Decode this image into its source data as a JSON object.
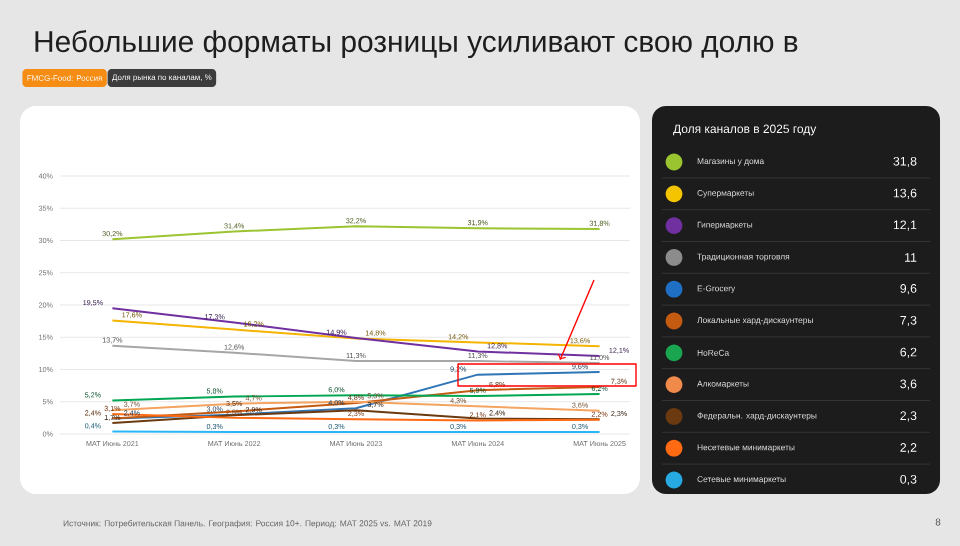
{
  "chart_data": [
    {
      "type": "line",
      "title": "Небольшие форматы розницы усиливают свою долю в",
      "subtitle": "FMCG-Food: Россия",
      "categories": [
        "MAT Июнь 2021",
        "MAT Июнь 2022",
        "MAT Июнь 2023",
        "MAT Июнь 2024",
        "MAT Июнь 2025"
      ],
      "ylim": [
        0,
        40
      ],
      "yticks": [
        {
          "value": 0,
          "label": "0%"
        },
        {
          "value": 5,
          "label": "5%"
        },
        {
          "value": 10,
          "label": "10%"
        },
        {
          "value": 15,
          "label": "15%"
        },
        {
          "value": 20,
          "label": "20%"
        },
        {
          "value": 25,
          "label": "25%"
        },
        {
          "value": 30,
          "label": "30%"
        },
        {
          "value": 35,
          "label": "35%"
        },
        {
          "value": 40,
          "label": "40%"
        }
      ],
      "grid": "y",
      "marker": "none",
      "line_style": "solid",
      "series": [
        {
          "color": "#9bc431",
          "values": [
            30.2,
            31.4,
            32.2,
            31.9,
            31.8
          ],
          "value_labels": [
            "30,2%",
            "31,4%",
            "32,2%",
            "31,9%",
            "31,8%"
          ]
        },
        {
          "color": "#f5b400",
          "values": [
            17.6,
            16.2,
            14.8,
            14.2,
            13.6
          ],
          "value_labels": [
            "17,6%",
            "16,2%",
            "14,8%",
            "14,2%",
            "13,6%"
          ]
        },
        {
          "color": "#7030a0",
          "values": [
            19.5,
            17.3,
            14.9,
            12.8,
            12.1
          ],
          "value_labels": [
            "19,5%",
            "17,3%",
            "14,9%",
            "12,8%",
            "12,1%"
          ]
        },
        {
          "color": "#a6a6a6",
          "values": [
            13.7,
            12.6,
            11.3,
            11.3,
            11.0
          ],
          "value_labels": [
            "13,7%",
            "12,6%",
            "11,3%",
            "11,3%",
            "11,0%"
          ]
        },
        {
          "color": "#2e75b6",
          "values": [
            2.4,
            3.0,
            4.0,
            9.2,
            9.6
          ],
          "value_labels": [
            "2,4%",
            "3,0%",
            "4,0%",
            "9,2%",
            "9,6%"
          ]
        },
        {
          "color": "#c55a11",
          "values": [
            2.4,
            3.5,
            4.8,
            6.8,
            7.3
          ],
          "value_labels": [
            "2,4%",
            "3,5%",
            "4,8%",
            "6,8%",
            "7,3%"
          ]
        },
        {
          "color": "#00a651",
          "values": [
            5.2,
            5.8,
            6.0,
            5.9,
            6.2
          ],
          "value_labels": [
            "5,2%",
            "5,8%",
            "6,0%",
            "5,9%",
            "6,2%"
          ]
        },
        {
          "color": "#f4a460",
          "values": [
            3.7,
            4.7,
            5.0,
            4.3,
            3.6
          ],
          "value_labels": [
            "3,7%",
            "4,7%",
            "5,0%",
            "4,3%",
            "3,6%"
          ]
        },
        {
          "color": "#6b3a10",
          "values": [
            1.7,
            2.9,
            3.7,
            2.4,
            2.3
          ],
          "value_labels": [
            "1,7%",
            "2,9%",
            "3,7%",
            "2,4%",
            "2,3%"
          ]
        },
        {
          "color": "#ff6a13",
          "values": [
            3.1,
            2.5,
            2.3,
            2.1,
            2.2
          ],
          "value_labels": [
            "3,1%",
            "2,5%",
            "2,3%",
            "2,1%",
            "2,2%"
          ]
        },
        {
          "color": "#29b6f6",
          "values": [
            0.4,
            0.3,
            0.3,
            0.3,
            0.3
          ],
          "value_labels": [
            "0,4%",
            "0,3%",
            "0,3%",
            "0,3%",
            "0,3%"
          ]
        }
      ],
      "annotations": [
        "Доля рынка по каналам, %",
        "Источник: Потребительская Панель. География: Россия 10+. Период: MAT 2025 vs. MAT 2019",
        "8"
      ]
    },
    {
      "type": "other",
      "title": "Доля каналов в 2025 году",
      "categories": [
        "Магазины у дома",
        "Супермаркеты",
        "Гипермаркеты",
        "Традиционная торговля",
        "E-Grocery",
        "Локальные хард-дискаунтеры",
        "HoReCa",
        "Алкомаркеты",
        "Федеральн. хард-дискаунтеры",
        "Несетевые минимаркеты",
        "Сетевые минимаркеты"
      ],
      "value_labels": [
        "31,8",
        "13,6",
        "12,1",
        "11",
        "9,6",
        "7,3",
        "6,2",
        "3,6",
        "2,3",
        "2,2",
        "0,3"
      ],
      "colors": [
        "#9bc431",
        "#f5c400",
        "#7030a0",
        "#8c8c8c",
        "#1f6fc4",
        "#c55a11",
        "#1aa550",
        "#f08a4b",
        "#6b3a10",
        "#ff6a13",
        "#27aae1"
      ]
    }
  ]
}
